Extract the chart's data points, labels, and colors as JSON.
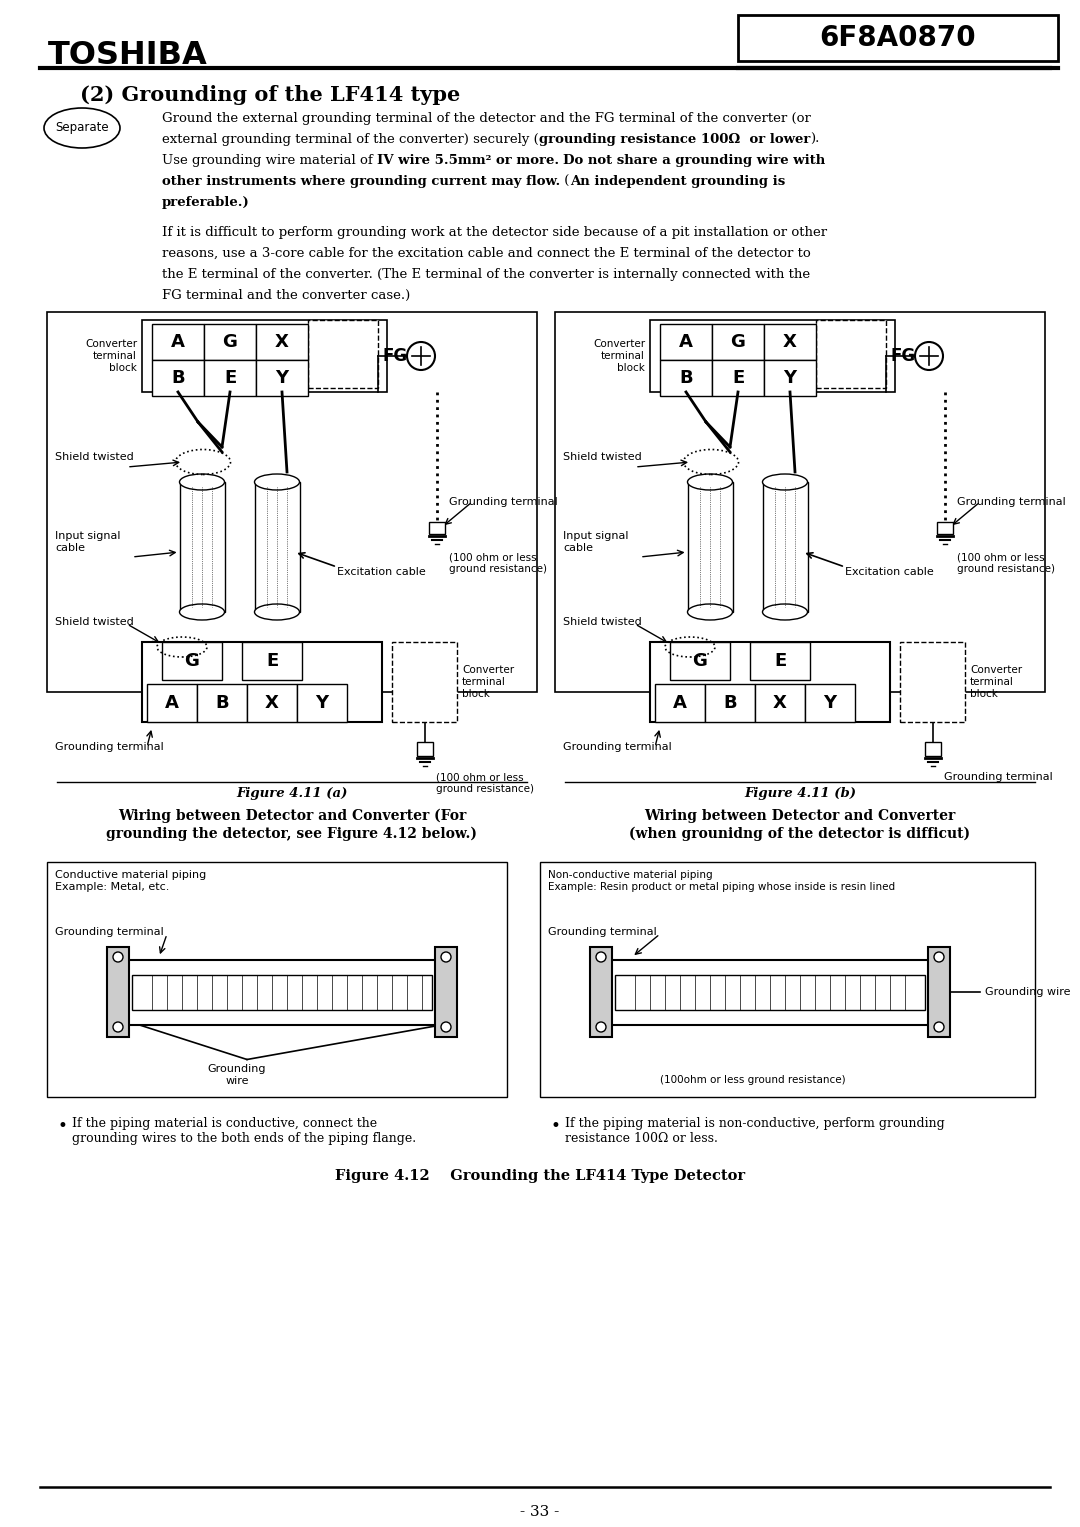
{
  "title": "(2) Grounding of the LF414 type",
  "toshiba_logo": "TOSHIBA",
  "doc_number": "6F8A0870",
  "page_number": "- 33 -",
  "separate_label": "Separate",
  "fig411a_caption": "Figure 4.11 (a)",
  "fig411b_caption": "Figure 4.11 (b)",
  "fig412_caption": "Figure 4.12    Grounding the LF414 Type Detector",
  "background_color": "#ffffff",
  "text_color": "#000000"
}
